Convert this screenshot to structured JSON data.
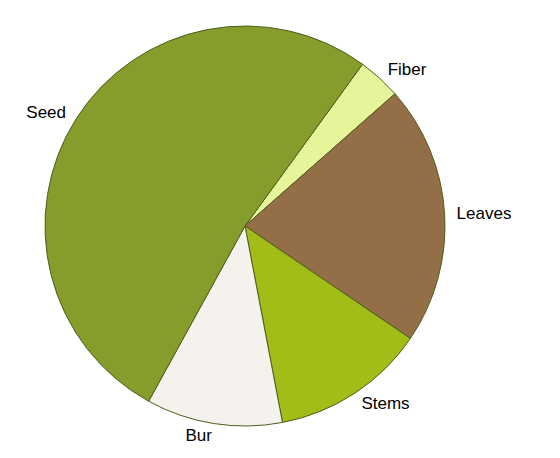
{
  "chart_data": {
    "type": "pie",
    "categories": [
      "Fiber",
      "Leaves",
      "Stems",
      "Bur",
      "Seed"
    ],
    "values": [
      3.5,
      21,
      12.5,
      11,
      52
    ],
    "colors": [
      "#e6f59a",
      "#946e47",
      "#a2bd18",
      "#f5f1ed",
      "#869d2b"
    ]
  }
}
